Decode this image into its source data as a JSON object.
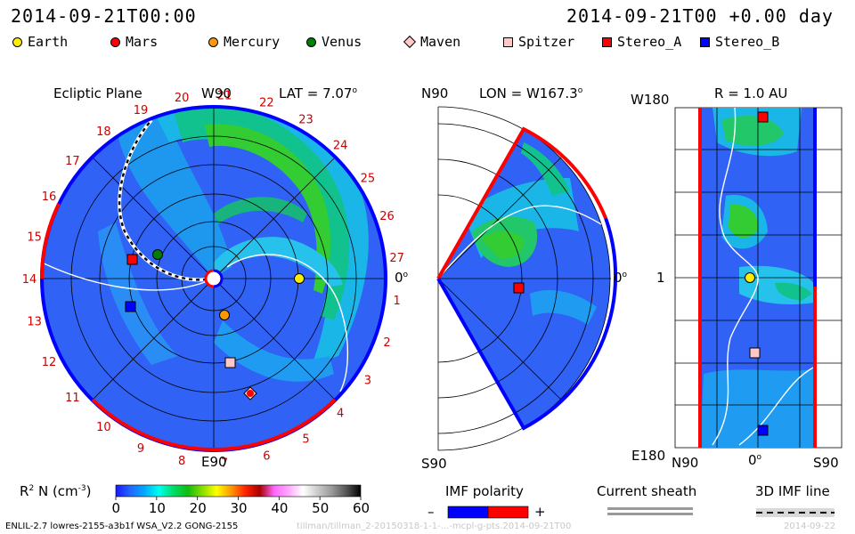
{
  "header": {
    "datetime_left": "2014-09-21T00:00",
    "datetime_right": "2014-09-21T00 +0.00 day"
  },
  "legend": [
    {
      "name": "Earth",
      "shape": "circle",
      "color": "#ffee00"
    },
    {
      "name": "Mars",
      "shape": "circle",
      "color": "#ff0000"
    },
    {
      "name": "Mercury",
      "shape": "circle",
      "color": "#ff9900"
    },
    {
      "name": "Venus",
      "shape": "circle",
      "color": "#008000"
    },
    {
      "name": "Maven",
      "shape": "diamond",
      "color": "#ffc8c8"
    },
    {
      "name": "Spitzer",
      "shape": "square",
      "color": "#ffc8c8"
    },
    {
      "name": "Stereo_A",
      "shape": "square",
      "color": "#ff0000"
    },
    {
      "name": "Stereo_B",
      "shape": "square",
      "color": "#0000ff"
    }
  ],
  "ecliptic": {
    "title": "Ecliptic Plane",
    "top_label": "W90",
    "lat_label": "LAT = 7.07",
    "bottom_label": "E90",
    "right_label": "0",
    "sector_numbers": [
      "1",
      "2",
      "3",
      "4",
      "5",
      "6",
      "7",
      "8",
      "9",
      "10",
      "11",
      "12",
      "13",
      "14",
      "15",
      "16",
      "17",
      "18",
      "19",
      "20",
      "21",
      "22",
      "23",
      "24",
      "25",
      "26",
      "27"
    ]
  },
  "meridional": {
    "top_left": "N90",
    "lon_label": "LON = W167.3",
    "bottom_left": "S90",
    "right_label": "0"
  },
  "radial": {
    "r_label": "R = 1.0 AU",
    "top_left": "W180",
    "middle_left": "1",
    "bottom_left": "E180",
    "x_left": "N90",
    "x_mid": "0",
    "x_right": "S90"
  },
  "colorbar": {
    "label": "R",
    "label_exp": "2",
    "label_rest": "N (cm",
    "label_unit_exp": "-3",
    "label_close": ")",
    "ticks": [
      "0",
      "10",
      "20",
      "30",
      "40",
      "50",
      "60"
    ],
    "range": [
      0,
      60
    ],
    "stops": [
      "#1a1aff",
      "#2266ff",
      "#00aaff",
      "#00ffee",
      "#00dd66",
      "#11bb11",
      "#88dd00",
      "#ffff00",
      "#ff9900",
      "#ff2200",
      "#aa0000",
      "#ff66ff",
      "#ffaaff",
      "#ffffff",
      "#cccccc",
      "#999999",
      "#555555",
      "#000000"
    ]
  },
  "imf_polarity": {
    "title": "IMF polarity",
    "minus": "–",
    "plus": "+",
    "negative_color": "#0000ff",
    "positive_color": "#ff0000"
  },
  "current_sheath": {
    "title": "Current sheath"
  },
  "imf_line": {
    "title": "3D IMF line"
  },
  "footer": {
    "model": "ENLIL-2.7 lowres-2155-a3b1f WSA_V2.2 GONG-2155",
    "run_id": "tillman/tillman_2-20150318-1-1-...-mcpl-g-pts.2014-09-21T00",
    "date_right": "2014-09-22"
  },
  "chart_data": [
    {
      "type": "heatmap",
      "title": "Ecliptic Plane",
      "quantity": "R2 N (cm-3)",
      "value_range": [
        0,
        60
      ],
      "objects_shown": [
        "Earth",
        "Mars",
        "Mercury",
        "Venus",
        "Maven",
        "Spitzer",
        "Stereo_A",
        "Stereo_B"
      ]
    },
    {
      "type": "heatmap",
      "title": "LON = W167.3",
      "objects_shown": [
        "Stereo_A"
      ]
    },
    {
      "type": "heatmap",
      "title": "R = 1.0 AU",
      "objects_shown": [
        "Stereo_A",
        "Earth",
        "Spitzer",
        "Stereo_B"
      ]
    }
  ]
}
